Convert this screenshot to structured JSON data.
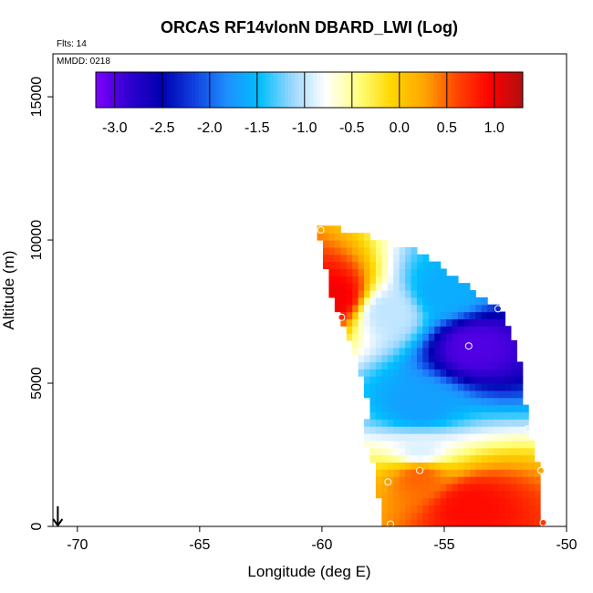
{
  "chart_data": {
    "type": "heatmap",
    "title": "ORCAS RF14vlonN DBARD_LWI (Log)",
    "flights_label": "Flts: 14",
    "date_label": "MMDD: 0218",
    "xlabel": "Longitude (deg E)",
    "ylabel": "Altitude (m)",
    "xlim": [
      -71,
      -50
    ],
    "ylim": [
      0,
      16500
    ],
    "x_ticks": [
      -70,
      -65,
      -60,
      -55,
      -50
    ],
    "y_ticks": [
      0,
      5000,
      10000,
      15000
    ],
    "grid": false,
    "colorbar": {
      "placement": "top-inside",
      "range": [
        -3.2,
        1.3
      ],
      "ticks": [
        -3.0,
        -2.5,
        -2.0,
        -1.5,
        -1.0,
        -0.5,
        0.0,
        0.5,
        1.0
      ],
      "tick_labels": [
        "-3.0",
        "-2.5",
        "-2.0",
        "-1.5",
        "-1.0",
        "-0.5",
        "0.0",
        "0.5",
        "1.0"
      ],
      "colors": [
        "#7f00ff",
        "#3000d0",
        "#0000b0",
        "#1040e0",
        "#1e90ff",
        "#00bfff",
        "#9ed8ff",
        "#ffffff",
        "#ffff80",
        "#ffd700",
        "#ffa500",
        "#ff4500",
        "#ff0000",
        "#b01010"
      ]
    },
    "marker": {
      "x": -70.8,
      "y": 0,
      "icon": "down-arrow-icon"
    },
    "field": {
      "lon_range": [
        -60.2,
        -51
      ],
      "alt_range": [
        0,
        10500
      ],
      "description_points": [
        {
          "x": -59.5,
          "y": 8000,
          "value": 1.0
        },
        {
          "x": -57.3,
          "y": 7500,
          "value": -1.0
        },
        {
          "x": -53.8,
          "y": 6300,
          "value": -3.0
        },
        {
          "x": -55.0,
          "y": 8200,
          "value": -1.6
        },
        {
          "x": -56.0,
          "y": 4200,
          "value": -1.7
        },
        {
          "x": -56.0,
          "y": 2600,
          "value": -0.9
        },
        {
          "x": -56.0,
          "y": 1800,
          "value": 0.5
        },
        {
          "x": -54.0,
          "y": 700,
          "value": 0.9
        }
      ]
    },
    "sample_points": [
      {
        "x": -60.05,
        "y": 10350
      },
      {
        "x": -59.2,
        "y": 7300
      },
      {
        "x": -52.8,
        "y": 7600
      },
      {
        "x": -54.0,
        "y": 6300
      },
      {
        "x": -51.6,
        "y": 3400
      },
      {
        "x": -56.0,
        "y": 1950
      },
      {
        "x": -57.3,
        "y": 1550
      },
      {
        "x": -51.05,
        "y": 1950
      },
      {
        "x": -57.2,
        "y": 80
      },
      {
        "x": -50.95,
        "y": 130
      }
    ]
  }
}
